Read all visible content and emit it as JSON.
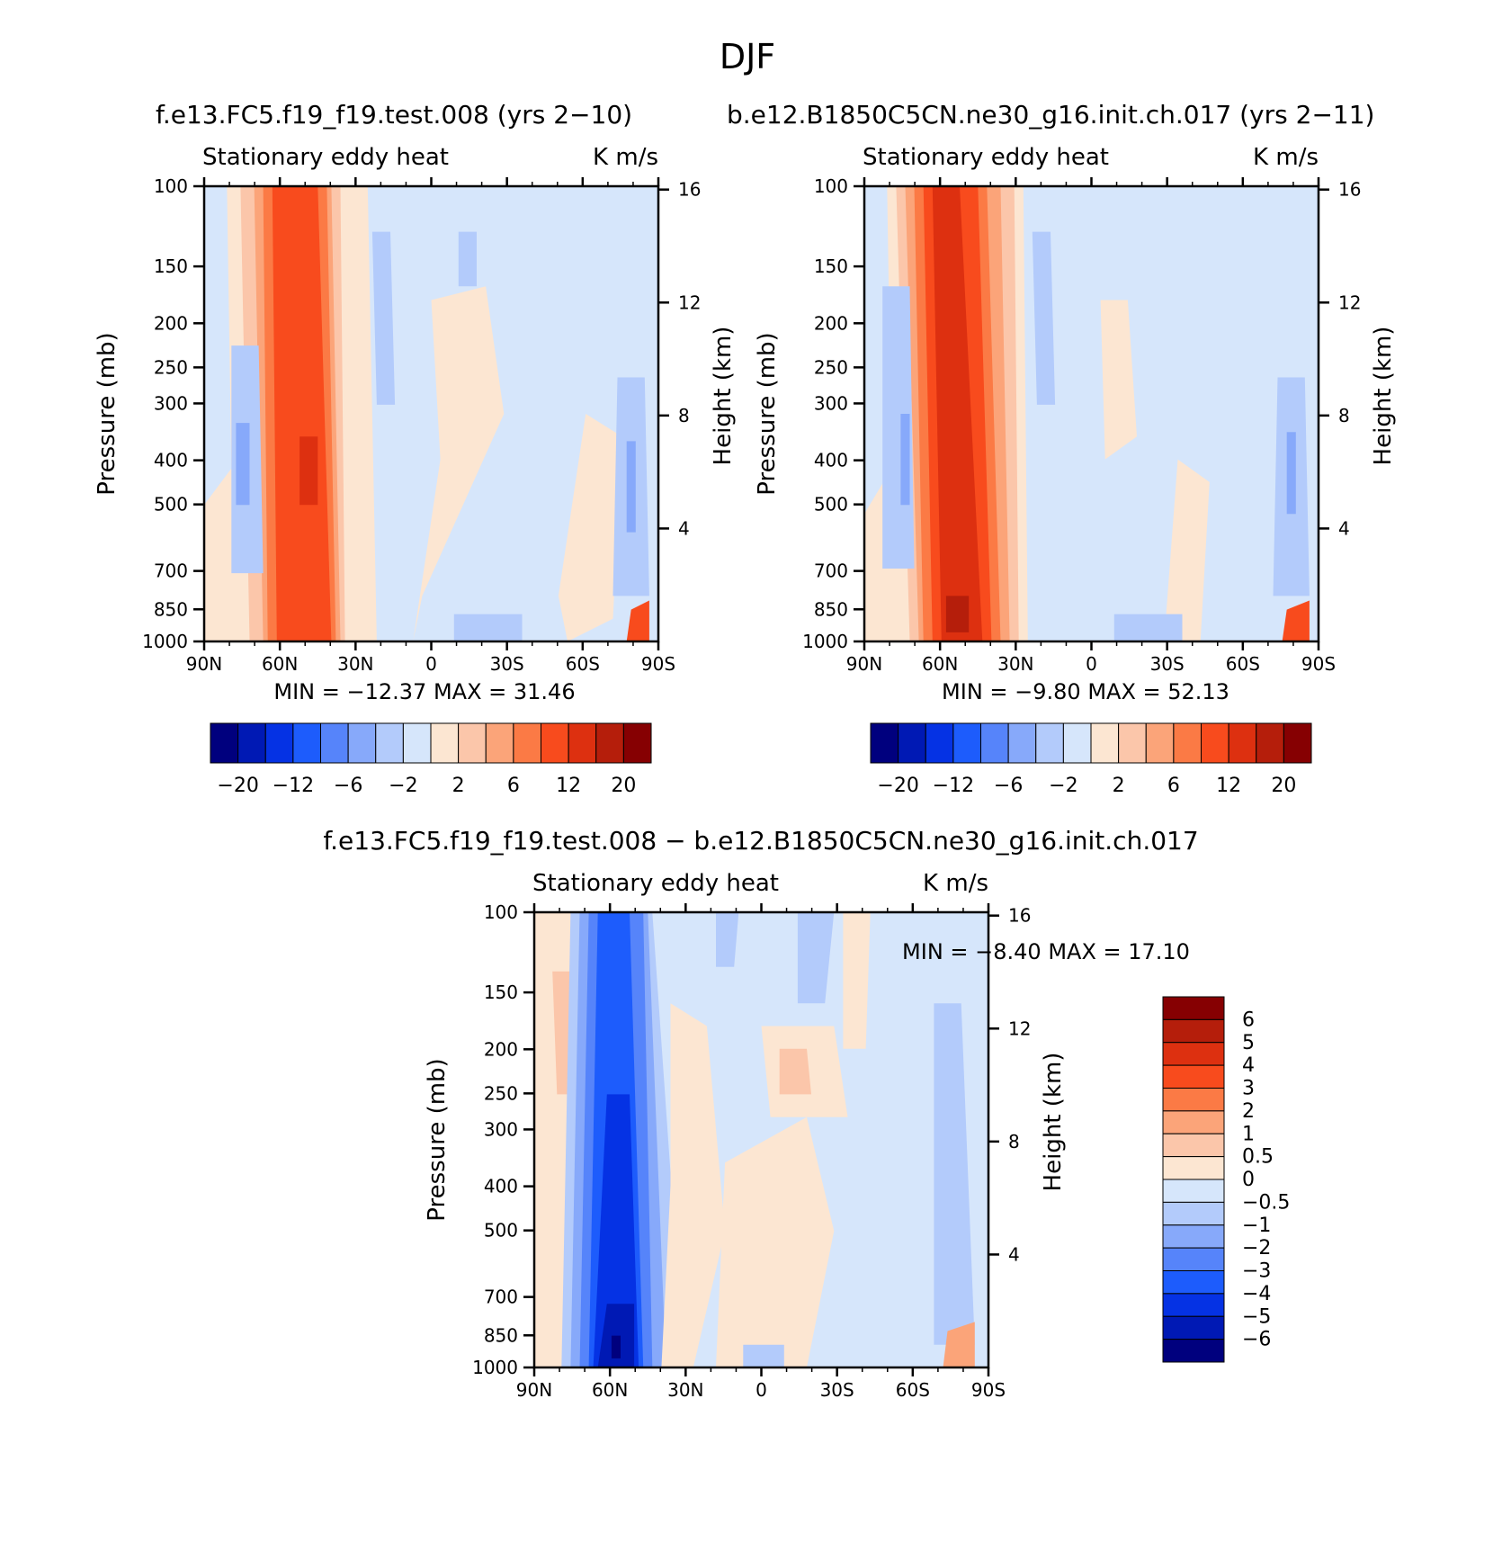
{
  "figure": {
    "season": "DJF",
    "top_title_left": "f.e13.FC5.f19_f19.test.008 (yrs 2−10)",
    "top_title_right": "b.e12.B1850C5CN.ne30_g16.init.ch.017 (yrs 2−11)",
    "bottom_title": "f.e13.FC5.f19_f19.test.008 − b.e12.B1850C5CN.ne30_g16.init.ch.017"
  },
  "colors": {
    "abs_scale": [
      "#00007e",
      "#0019b4",
      "#0532e4",
      "#1d5cfc",
      "#5684fa",
      "#87a9fa",
      "#b3cbfb",
      "#d6e6fb",
      "#fce6d2",
      "#fbc6aa",
      "#fba479",
      "#fb7a45",
      "#f84b1d",
      "#dd3010",
      "#b51e0b",
      "#860002"
    ],
    "diff_scale": [
      "#00007e",
      "#0019b4",
      "#0532e4",
      "#1d5cfc",
      "#5684fa",
      "#87a9fa",
      "#b3cbfb",
      "#d6e6fb",
      "#fce6d2",
      "#fbc6aa",
      "#fba479",
      "#fb7a45",
      "#f84b1d",
      "#dd3010",
      "#b51e0b",
      "#860002"
    ],
    "background_fill": "#d6e6fb"
  },
  "chart_data": [
    {
      "type": "heatmap",
      "panel": "top-left",
      "title": "Stationary eddy heat",
      "units": "K m/s",
      "xlabel": "",
      "ylabel": "Pressure (mb)",
      "ylabel_right": "Height (km)",
      "xticks": [
        "90N",
        "60N",
        "30N",
        "0",
        "30S",
        "60S",
        "90S"
      ],
      "yticks": [
        "100",
        "150",
        "200",
        "250",
        "300",
        "400",
        "500",
        "700",
        "850",
        "1000"
      ],
      "yticks_right": [
        "16",
        "12",
        "8",
        "4"
      ],
      "ylim": [
        1000,
        100
      ],
      "y_scale": "log",
      "min_label": "MIN = −12.37",
      "max_label": "MAX = 31.46",
      "min": -12.37,
      "max": 31.46,
      "colorbar_labels": [
        "−20",
        "−12",
        "−6",
        "−2",
        "2",
        "6",
        "12",
        "20"
      ],
      "colorbar_orientation": "horizontal"
    },
    {
      "type": "heatmap",
      "panel": "top-right",
      "title": "Stationary eddy heat",
      "units": "K m/s",
      "xlabel": "",
      "ylabel": "Pressure (mb)",
      "ylabel_right": "Height (km)",
      "xticks": [
        "90N",
        "60N",
        "30N",
        "0",
        "30S",
        "60S",
        "90S"
      ],
      "yticks": [
        "100",
        "150",
        "200",
        "250",
        "300",
        "400",
        "500",
        "700",
        "850",
        "1000"
      ],
      "yticks_right": [
        "16",
        "12",
        "8",
        "4"
      ],
      "ylim": [
        1000,
        100
      ],
      "y_scale": "log",
      "min_label": "MIN = −9.80",
      "max_label": "MAX = 52.13",
      "min": -9.8,
      "max": 52.13,
      "colorbar_labels": [
        "−20",
        "−12",
        "−6",
        "−2",
        "2",
        "6",
        "12",
        "20"
      ],
      "colorbar_orientation": "horizontal"
    },
    {
      "type": "heatmap",
      "panel": "bottom-difference",
      "title": "Stationary eddy heat",
      "units": "K m/s",
      "xlabel": "",
      "ylabel": "Pressure (mb)",
      "ylabel_right": "Height (km)",
      "xticks": [
        "90N",
        "60N",
        "30N",
        "0",
        "30S",
        "60S",
        "90S"
      ],
      "yticks": [
        "100",
        "150",
        "200",
        "250",
        "300",
        "400",
        "500",
        "700",
        "850",
        "1000"
      ],
      "yticks_right": [
        "16",
        "12",
        "8",
        "4"
      ],
      "ylim": [
        1000,
        100
      ],
      "y_scale": "log",
      "min_label": "MIN = −8.40",
      "max_label": "MAX = 17.10",
      "min": -8.4,
      "max": 17.1,
      "colorbar_labels": [
        "6",
        "5",
        "4",
        "3",
        "2",
        "1",
        "0.5",
        "0",
        "−0.5",
        "−1",
        "−2",
        "−3",
        "−4",
        "−5",
        "−6"
      ],
      "colorbar_orientation": "vertical"
    }
  ]
}
